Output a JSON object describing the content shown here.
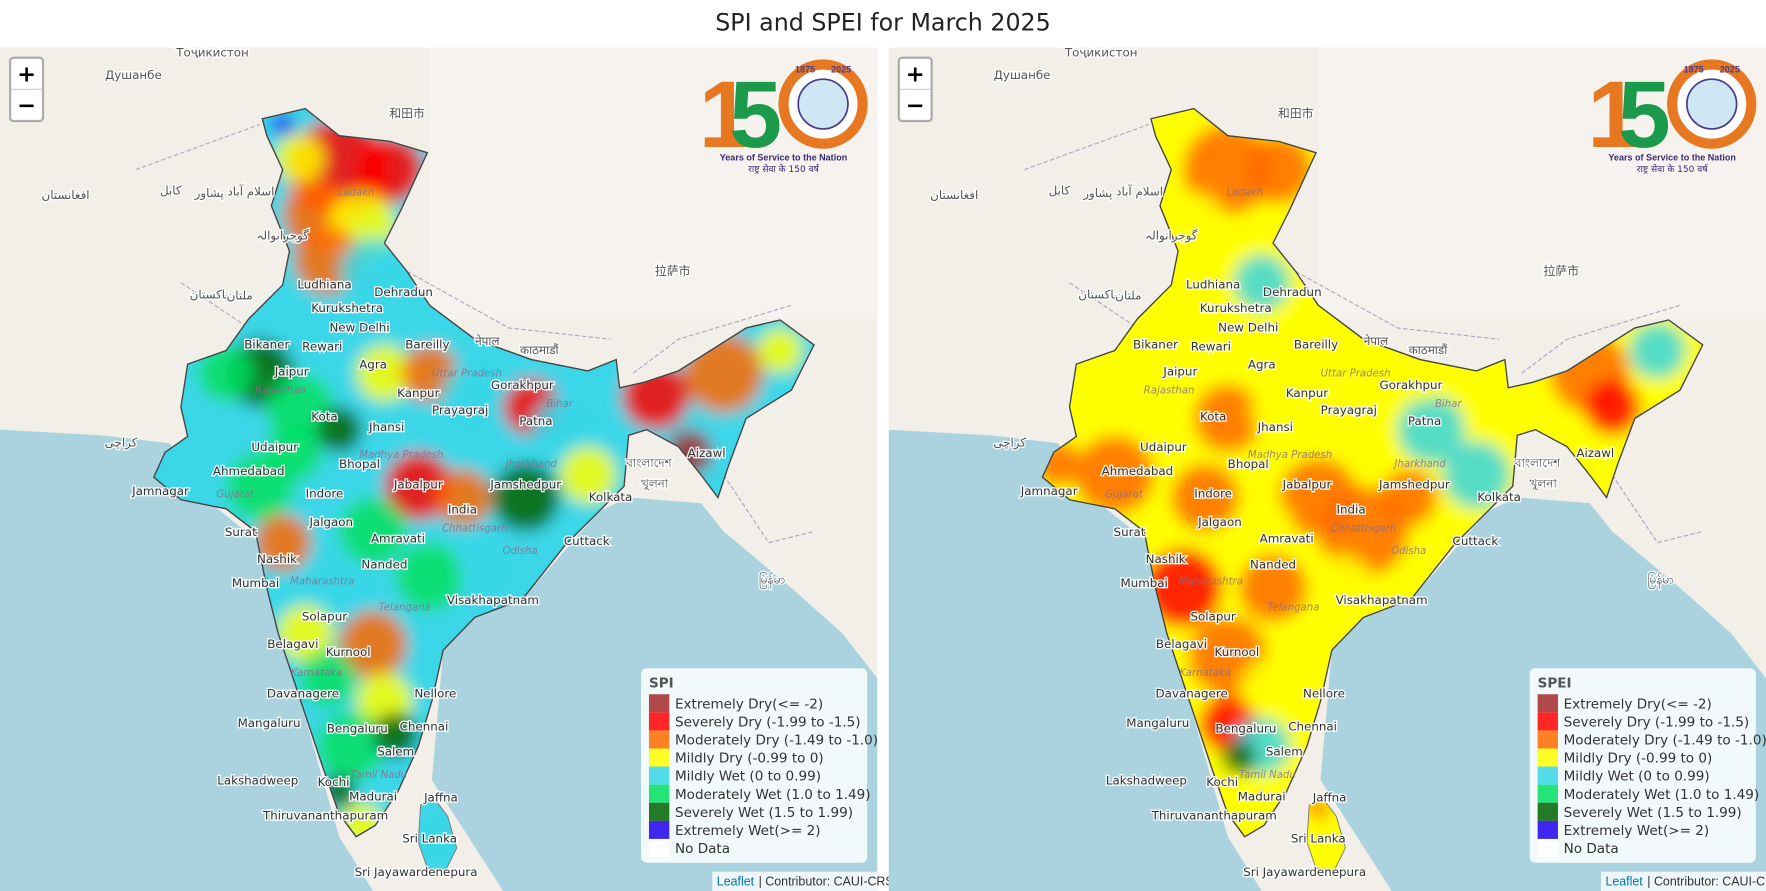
{
  "title": "SPI and SPEI for March 2025",
  "maps": [
    {
      "legend_title": "SPI"
    },
    {
      "legend_title": "SPEI"
    }
  ],
  "legend_items": [
    {
      "label": "Extremely Dry(<= -2)",
      "color": "#a52a2a"
    },
    {
      "label": "Severely Dry (-1.99 to -1.5)",
      "color": "#ff0000"
    },
    {
      "label": "Moderately Dry (-1.49 to -1.0)",
      "color": "#ff6a00"
    },
    {
      "label": "Mildly Dry (-0.99 to 0)",
      "color": "#ffff00"
    },
    {
      "label": "Mildly Wet (0 to 0.99)",
      "color": "#3ad7e8"
    },
    {
      "label": "Moderately Wet (1.0 to 1.49)",
      "color": "#00e060"
    },
    {
      "label": "Severely Wet (1.5 to 1.99)",
      "color": "#006400"
    },
    {
      "label": "Extremely Wet(>= 2)",
      "color": "#2200ee"
    },
    {
      "label": "No Data",
      "color": "#ffffff"
    }
  ],
  "zoom": {
    "in": "+",
    "out": "−"
  },
  "attribution": {
    "link": "Leaflet",
    "text": "| Contributor: CAUI-CRS"
  },
  "logo": {
    "digits": [
      "1",
      "5"
    ],
    "years": [
      "1875",
      "2025"
    ],
    "tagline": "Years of Service to the Nation",
    "tagline_hi": "राष्ट्र सेवा के 150 वर्ष"
  },
  "place_labels": [
    "Ludhiana",
    "Kurukshetra",
    "Dehradun",
    "New Delhi",
    "Bareilly",
    "Bikaner",
    "Rewari",
    "Jaipur",
    "Agra",
    "Kanpur",
    "Gorakhpur",
    "Kota",
    "Jhansi",
    "Prayagraj",
    "Patna",
    "Udaipur",
    "Ahmedabad",
    "Bhopal",
    "Jabalpur",
    "Jamshedpur",
    "Kolkata",
    "Jamnagar",
    "Indore",
    "India",
    "Surat",
    "Jalgaon",
    "Amravati",
    "Cuttack",
    "Nashik",
    "Nanded",
    "Mumbai",
    "Visakhapatnam",
    "Solapur",
    "Belagavi",
    "Kurnool",
    "Nellore",
    "Davanagere",
    "Mangaluru",
    "Bengaluru",
    "Chennai",
    "Salem",
    "Kochi",
    "Madurai",
    "Thiruvananthapuram",
    "Jaffna",
    "Sri Lanka",
    "Sri Jayawardenepura",
    "Lakshadweep",
    "Aizawl",
    "Душанбе",
    "Тоҷикистон",
    "افغانستان",
    "کابل",
    "پشاور",
    "اسلام آباد",
    "گوجرانوالہ",
    "پاکستان",
    "ملتان",
    "کراچی",
    "नेपाल",
    "काठमाडौं",
    "拉萨市",
    "和田市",
    "বাংলাদেশ",
    "খুলনা",
    "မြန်မာ"
  ],
  "region_labels": [
    "Ladakh",
    "Uttar Pradesh",
    "Madhya Pradesh",
    "Telangana",
    "Karnataka",
    "Tamil Nadu",
    "Chhattisgarh",
    "Odisha",
    "Jharkhand",
    "Bihar",
    "Rajasthan",
    "Gujarat",
    "Maharashtra"
  ]
}
